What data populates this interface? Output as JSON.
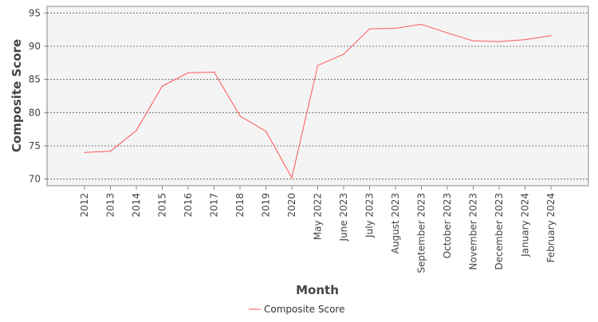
{
  "chart_data": {
    "type": "line",
    "xlabel": "Month",
    "ylabel": "Composite Score",
    "ylim": [
      69,
      96
    ],
    "yticks": [
      70,
      75,
      80,
      85,
      90,
      95
    ],
    "grid": true,
    "legend_position": "bottom-center",
    "categories": [
      "2012",
      "2013",
      "2014",
      "2015",
      "2016",
      "2017",
      "2018",
      "2019",
      "2020",
      "May 2022",
      "June 2023",
      "July 2023",
      "August 2023",
      "September 2023",
      "October 2023",
      "November 2023",
      "December 2023",
      "January 2024",
      "February 2024"
    ],
    "series": [
      {
        "name": "Composite Score",
        "color": "#ff5555",
        "values": [
          74.0,
          74.2,
          77.3,
          84.0,
          86.0,
          86.1,
          79.5,
          77.2,
          70.2,
          87.1,
          88.8,
          92.6,
          92.7,
          93.3,
          92.0,
          90.8,
          90.7,
          91.0,
          91.6
        ]
      }
    ]
  }
}
